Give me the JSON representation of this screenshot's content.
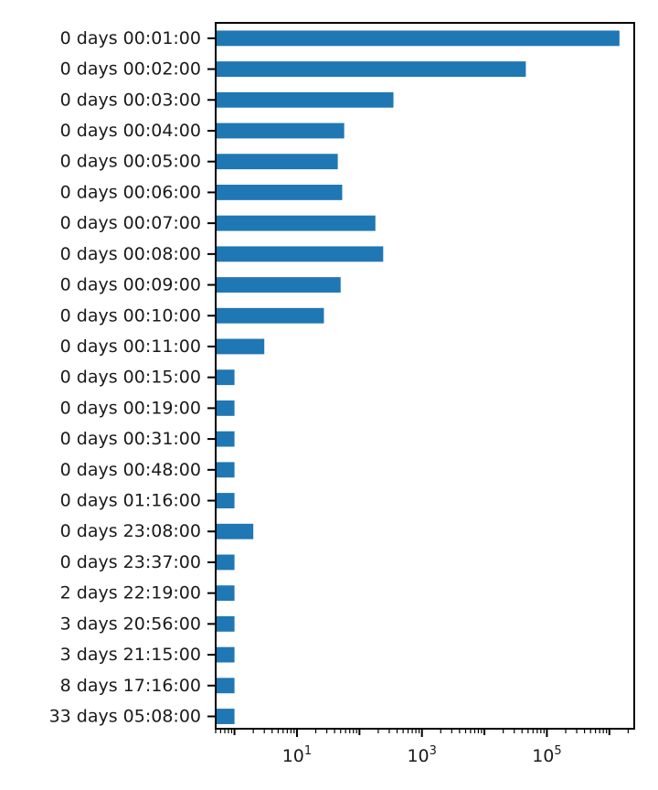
{
  "chart_data": {
    "type": "bar",
    "orientation": "horizontal",
    "x_scale": "log",
    "xlim": [
      0.5,
      2500000
    ],
    "grid": false,
    "legend": "none",
    "title": "",
    "xlabel": "",
    "ylabel": "",
    "bar_color": "#1f77b4",
    "x_ticks": [
      {
        "value": 10,
        "base": "10",
        "exp": "1"
      },
      {
        "value": 1000,
        "base": "10",
        "exp": "3"
      },
      {
        "value": 100000,
        "base": "10",
        "exp": "5"
      }
    ],
    "categories": [
      "0 days 00:01:00",
      "0 days 00:02:00",
      "0 days 00:03:00",
      "0 days 00:04:00",
      "0 days 00:05:00",
      "0 days 00:06:00",
      "0 days 00:07:00",
      "0 days 00:08:00",
      "0 days 00:09:00",
      "0 days 00:10:00",
      "0 days 00:11:00",
      "0 days 00:15:00",
      "0 days 00:19:00",
      "0 days 00:31:00",
      "0 days 00:48:00",
      "0 days 01:16:00",
      "0 days 23:08:00",
      "0 days 23:37:00",
      "2 days 22:19:00",
      "3 days 20:56:00",
      "3 days 21:15:00",
      "8 days 17:16:00",
      "33 days 05:08:00"
    ],
    "values": [
      1450000,
      46000,
      350,
      57,
      45,
      53,
      180,
      240,
      50,
      27,
      3,
      1,
      1,
      1,
      1,
      1,
      2,
      1,
      1,
      1,
      1,
      1,
      1
    ]
  }
}
